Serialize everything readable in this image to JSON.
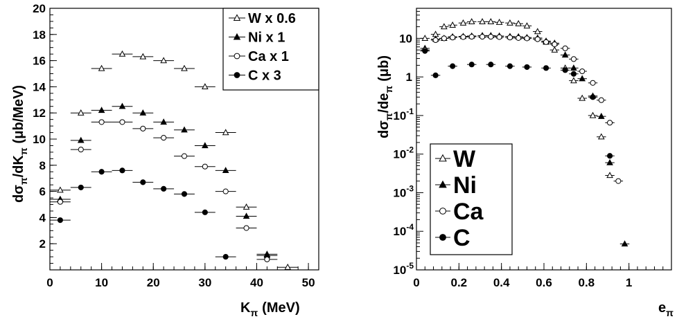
{
  "charts": [
    {
      "id": "left",
      "type": "scatter",
      "xlabel_main": "K",
      "xlabel_sub": "π",
      "xlabel_unit": "(MeV)",
      "ylabel_main": "dσ",
      "ylabel_sub1": "π",
      "ylabel_mid": "/dK",
      "ylabel_sub2": "π",
      "ylabel_unit": "(μb/MeV)",
      "xlim": [
        0,
        52
      ],
      "ylim": [
        0,
        20
      ],
      "log_y": false,
      "grid": false,
      "legend_position": "top-right",
      "x_ticks": [
        {
          "value": 0,
          "label": "0"
        },
        {
          "value": 10,
          "label": "10"
        },
        {
          "value": 20,
          "label": "20"
        },
        {
          "value": 30,
          "label": "30"
        },
        {
          "value": 40,
          "label": "40"
        },
        {
          "value": 50,
          "label": "50"
        }
      ],
      "y_ticks": [
        {
          "value": 2,
          "label": "2"
        },
        {
          "value": 4,
          "label": "4"
        },
        {
          "value": 6,
          "label": "6"
        },
        {
          "value": 8,
          "label": "8"
        },
        {
          "value": 10,
          "label": "10"
        },
        {
          "value": 12,
          "label": "12"
        },
        {
          "value": 14,
          "label": "14"
        },
        {
          "value": 16,
          "label": "16"
        },
        {
          "value": 18,
          "label": "18"
        },
        {
          "value": 20,
          "label": "20"
        }
      ],
      "xerr": 2,
      "series": [
        {
          "name": "W x 0.6",
          "marker": "open-triangle",
          "x": [
            2,
            6,
            10,
            14,
            18,
            22,
            26,
            30,
            34,
            38,
            42,
            46
          ],
          "y": [
            6.1,
            12.0,
            15.4,
            16.5,
            16.3,
            16.0,
            15.4,
            14.0,
            10.5,
            4.8,
            1.2,
            0.2
          ]
        },
        {
          "name": "Ni x 1",
          "marker": "filled-triangle",
          "x": [
            2,
            6,
            10,
            14,
            18,
            22,
            26,
            30,
            34,
            38,
            42
          ],
          "y": [
            5.4,
            9.9,
            12.2,
            12.5,
            12.0,
            11.3,
            10.7,
            9.5,
            7.6,
            4.1,
            1.1
          ]
        },
        {
          "name": "Ca x 1",
          "marker": "open-circle",
          "x": [
            2,
            6,
            10,
            14,
            18,
            22,
            26,
            30,
            34,
            38,
            42
          ],
          "y": [
            5.2,
            9.2,
            11.3,
            11.3,
            10.8,
            10.1,
            8.7,
            7.9,
            6.0,
            3.2,
            0.8
          ]
        },
        {
          "name": "C x 3",
          "marker": "filled-circle",
          "x": [
            2,
            6,
            10,
            14,
            18,
            22,
            26,
            30,
            34
          ],
          "y": [
            3.8,
            6.3,
            7.5,
            7.6,
            6.7,
            6.2,
            5.8,
            4.4,
            1.0
          ]
        }
      ]
    },
    {
      "id": "right",
      "type": "scatter",
      "xlabel_main": "e",
      "xlabel_sub": "π",
      "ylabel_main": "dσ",
      "ylabel_sub1": "π",
      "ylabel_mid": "/de",
      "ylabel_sub2": "π",
      "ylabel_unit": "(μb)",
      "xlim": [
        0,
        1.2
      ],
      "ylim": [
        1e-05,
        60
      ],
      "log_y": true,
      "grid": false,
      "legend_position": "bottom-left",
      "x_ticks": [
        {
          "value": 0,
          "label": "0"
        },
        {
          "value": 0.2,
          "label": "0.2"
        },
        {
          "value": 0.4,
          "label": "0.4"
        },
        {
          "value": 0.6,
          "label": "0.6"
        },
        {
          "value": 0.8,
          "label": "0.8"
        },
        {
          "value": 1,
          "label": "1"
        }
      ],
      "y_ticks": [
        {
          "value": 1e-05,
          "base": "10",
          "exp": "-5"
        },
        {
          "value": 0.0001,
          "base": "10",
          "exp": "-4"
        },
        {
          "value": 0.001,
          "base": "10",
          "exp": "-3"
        },
        {
          "value": 0.01,
          "base": "10",
          "exp": "-2"
        },
        {
          "value": 0.1,
          "base": "10",
          "exp": "-1"
        },
        {
          "value": 1,
          "base": "1",
          "exp": ""
        },
        {
          "value": 10,
          "base": "10",
          "exp": ""
        }
      ],
      "xerr": 0.022,
      "series": [
        {
          "name": "W",
          "marker": "open-triangle",
          "x": [
            0.04,
            0.09,
            0.13,
            0.17,
            0.22,
            0.26,
            0.31,
            0.35,
            0.39,
            0.44,
            0.48,
            0.52,
            0.57,
            0.61,
            0.65,
            0.7,
            0.74,
            0.78,
            0.83,
            0.87,
            0.91
          ],
          "y": [
            10,
            12.7,
            20,
            22,
            25,
            27,
            27,
            27,
            26,
            25,
            24,
            21,
            15,
            8,
            5,
            1.7,
            0.8,
            0.28,
            0.1,
            0.028,
            0.0028
          ]
        },
        {
          "name": "Ni",
          "marker": "filled-triangle",
          "x": [
            0.04,
            0.09,
            0.13,
            0.17,
            0.22,
            0.26,
            0.31,
            0.35,
            0.39,
            0.44,
            0.48,
            0.52,
            0.57,
            0.61,
            0.65,
            0.7,
            0.74,
            0.78,
            0.83,
            0.87,
            0.91,
            0.98
          ],
          "y": [
            5.5,
            9.5,
            10,
            11,
            11.2,
            11.5,
            11.8,
            11.8,
            11.5,
            11.2,
            11.0,
            10.5,
            10.2,
            8.5,
            7.5,
            3.7,
            1.7,
            0.9,
            0.32,
            0.095,
            0.006,
            4.7e-05
          ]
        },
        {
          "name": "Ca",
          "marker": "open-circle",
          "x": [
            0.04,
            0.09,
            0.13,
            0.17,
            0.22,
            0.26,
            0.31,
            0.35,
            0.39,
            0.44,
            0.48,
            0.52,
            0.57,
            0.61,
            0.65,
            0.7,
            0.74,
            0.78,
            0.83,
            0.87,
            0.91,
            0.95
          ],
          "y": [
            5,
            9,
            10,
            10.5,
            10.8,
            11,
            11,
            11,
            10.8,
            10.5,
            10.2,
            10,
            9.5,
            8,
            7,
            5.5,
            2.9,
            1.4,
            0.7,
            0.25,
            0.065,
            0.002
          ]
        },
        {
          "name": "C",
          "marker": "filled-circle",
          "x": [
            0.04,
            0.09,
            0.17,
            0.26,
            0.35,
            0.44,
            0.52,
            0.61,
            0.7,
            0.74,
            0.83,
            0.91
          ],
          "y": [
            4.7,
            1.1,
            1.9,
            2.1,
            2.1,
            1.9,
            1.8,
            1.7,
            1.5,
            1.2,
            0.3,
            0.009
          ]
        }
      ]
    }
  ]
}
